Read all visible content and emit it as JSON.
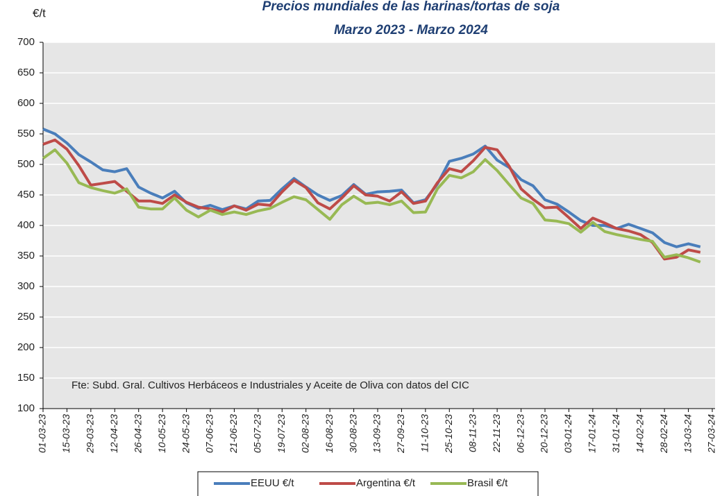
{
  "chart_data": {
    "type": "line",
    "title": "Precios mundiales de las harinas/tortas de soja",
    "subtitle": "Marzo 2023 - Marzo 2024",
    "y_label": "€/t",
    "annotation": "Fte: Subd. Gral. Cultivos Herbáceos e Industriales y Aceite de Oliva con datos del CIC",
    "categories": [
      "01-03-23",
      null,
      "15-03-23",
      null,
      "29-03-23",
      null,
      "12-04-23",
      null,
      "26-04-23",
      null,
      "10-05-23",
      null,
      "24-05-23",
      null,
      "07-06-23",
      null,
      "21-06-23",
      null,
      "05-07-23",
      null,
      "19-07-23",
      null,
      "02-08-23",
      null,
      "16-08-23",
      null,
      "30-08-23",
      null,
      "13-09-23",
      null,
      "27-09-23",
      null,
      "11-10-23",
      null,
      "25-10-23",
      null,
      "08-11-23",
      null,
      "22-11-23",
      null,
      "06-12-23",
      null,
      "20-12-23",
      null,
      "03-01-24",
      null,
      "17-01-24",
      null,
      "31-01-24",
      null,
      "14-02-24",
      null,
      "28-02-24",
      null,
      "13-03-24",
      null,
      "27-03-24"
    ],
    "series": [
      {
        "name": "EEUU €/t",
        "color": "#4a7ebb",
        "values": [
          558,
          550,
          535,
          516,
          504,
          491,
          488,
          493,
          463,
          453,
          445,
          456,
          437,
          428,
          433,
          426,
          432,
          427,
          440,
          441,
          460,
          477,
          463,
          450,
          441,
          449,
          467,
          451,
          455,
          456,
          458,
          437,
          442,
          468,
          505,
          510,
          517,
          530,
          507,
          495,
          475,
          465,
          442,
          435,
          422,
          408,
          400,
          400,
          395,
          402,
          395,
          388,
          372,
          365,
          370,
          365,
          null
        ]
      },
      {
        "name": "Argentina €/t",
        "color": "#be4b48",
        "values": [
          533,
          540,
          525,
          498,
          466,
          469,
          472,
          456,
          440,
          440,
          436,
          450,
          438,
          430,
          427,
          422,
          432,
          425,
          435,
          433,
          455,
          474,
          462,
          437,
          427,
          445,
          465,
          450,
          448,
          440,
          455,
          436,
          440,
          470,
          493,
          488,
          506,
          528,
          524,
          497,
          460,
          443,
          429,
          430,
          413,
          395,
          412,
          404,
          395,
          391,
          385,
          372,
          345,
          348,
          360,
          356,
          null
        ]
      },
      {
        "name": "Brasil €/t",
        "color": "#98b954",
        "values": [
          510,
          524,
          502,
          470,
          462,
          457,
          453,
          460,
          430,
          427,
          427,
          445,
          425,
          414,
          425,
          418,
          422,
          418,
          424,
          428,
          438,
          447,
          442,
          426,
          410,
          434,
          448,
          436,
          438,
          434,
          440,
          421,
          422,
          460,
          482,
          478,
          488,
          508,
          490,
          467,
          445,
          436,
          409,
          407,
          403,
          389,
          405,
          390,
          385,
          381,
          377,
          374,
          348,
          352,
          347,
          340,
          null
        ]
      }
    ],
    "ylim": [
      100,
      700
    ],
    "yticks": [
      100,
      150,
      200,
      250,
      300,
      350,
      400,
      450,
      500,
      550,
      600,
      650,
      700
    ],
    "grid": true,
    "plot_background": "#e6e6e6",
    "legend": "bottom"
  }
}
